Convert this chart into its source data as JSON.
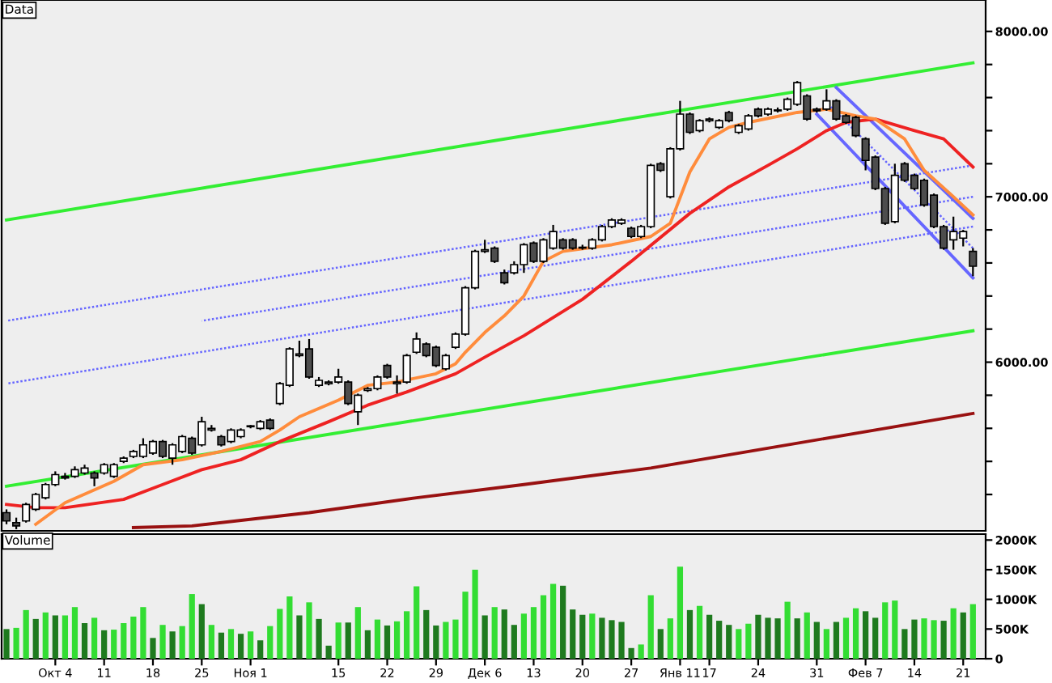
{
  "chart_data": [
    {
      "type": "candlestick",
      "title": "Data",
      "categories": [
        null,
        null,
        null,
        null,
        null,
        null,
        null,
        null,
        null,
        null,
        null,
        null,
        null,
        null,
        null,
        null,
        null,
        null,
        null,
        null,
        null,
        null,
        null,
        null,
        null,
        null,
        null,
        null,
        null,
        null,
        null,
        null,
        null,
        null,
        null,
        null,
        null,
        null,
        null,
        null,
        null,
        null,
        null,
        null,
        null,
        null,
        null,
        null,
        null,
        null,
        null,
        null,
        null,
        null,
        null,
        null,
        null,
        null,
        null,
        null,
        null,
        null,
        null,
        null,
        null,
        null,
        null,
        null,
        null,
        null,
        null,
        null,
        null,
        null,
        null,
        null,
        null,
        null,
        null,
        null,
        null,
        null,
        null,
        null,
        null,
        null,
        null,
        null,
        null,
        null,
        null,
        null,
        null,
        null,
        null,
        null,
        null,
        null,
        null,
        null
      ],
      "ohlc": [
        [
          5090,
          5110,
          5020,
          5040
        ],
        [
          5030,
          5060,
          4990,
          5010
        ],
        [
          5040,
          5150,
          5030,
          5140
        ],
        [
          5110,
          5210,
          5100,
          5200
        ],
        [
          5180,
          5270,
          5170,
          5260
        ],
        [
          5260,
          5340,
          5250,
          5320
        ],
        [
          5310,
          5330,
          5290,
          5300
        ],
        [
          5310,
          5370,
          5300,
          5350
        ],
        [
          5330,
          5380,
          5320,
          5360
        ],
        [
          5330,
          5340,
          5250,
          5300
        ],
        [
          5330,
          5390,
          5320,
          5380
        ],
        [
          5310,
          5390,
          5300,
          5380
        ],
        [
          5400,
          5430,
          5390,
          5420
        ],
        [
          5430,
          5470,
          5420,
          5460
        ],
        [
          5430,
          5540,
          5420,
          5500
        ],
        [
          5450,
          5530,
          5440,
          5520
        ],
        [
          5520,
          5530,
          5420,
          5430
        ],
        [
          5420,
          5510,
          5380,
          5500
        ],
        [
          5460,
          5560,
          5450,
          5550
        ],
        [
          5540,
          5550,
          5440,
          5450
        ],
        [
          5500,
          5670,
          5490,
          5640
        ],
        [
          5590,
          5620,
          5580,
          5600
        ],
        [
          5550,
          5560,
          5490,
          5500
        ],
        [
          5520,
          5600,
          5510,
          5590
        ],
        [
          5550,
          5600,
          5540,
          5590
        ],
        [
          5610,
          5620,
          5600,
          5615
        ],
        [
          5600,
          5650,
          5590,
          5640
        ],
        [
          5650,
          5660,
          5590,
          5600
        ],
        [
          5750,
          5880,
          5740,
          5870
        ],
        [
          5860,
          6090,
          5850,
          6080
        ],
        [
          6040,
          6130,
          6030,
          6050
        ],
        [
          6080,
          6140,
          5900,
          5910
        ],
        [
          5860,
          5910,
          5850,
          5890
        ],
        [
          5870,
          5890,
          5860,
          5880
        ],
        [
          5880,
          5960,
          5870,
          5910
        ],
        [
          5880,
          5890,
          5740,
          5750
        ],
        [
          5700,
          5810,
          5620,
          5800
        ],
        [
          5830,
          5850,
          5820,
          5840
        ],
        [
          5840,
          5920,
          5830,
          5910
        ],
        [
          5980,
          5990,
          5900,
          5910
        ],
        [
          5870,
          5920,
          5810,
          5880
        ],
        [
          5880,
          6050,
          5870,
          6040
        ],
        [
          6060,
          6180,
          6050,
          6140
        ],
        [
          6110,
          6120,
          6030,
          6040
        ],
        [
          6090,
          6100,
          5970,
          5980
        ],
        [
          5960,
          6050,
          5950,
          6040
        ],
        [
          6090,
          6180,
          6080,
          6170
        ],
        [
          6170,
          6460,
          6160,
          6450
        ],
        [
          6450,
          6680,
          6440,
          6670
        ],
        [
          6670,
          6740,
          6660,
          6680
        ],
        [
          6690,
          6700,
          6600,
          6610
        ],
        [
          6540,
          6560,
          6470,
          6480
        ],
        [
          6540,
          6610,
          6530,
          6590
        ],
        [
          6590,
          6720,
          6540,
          6710
        ],
        [
          6720,
          6730,
          6600,
          6610
        ],
        [
          6610,
          6750,
          6600,
          6740
        ],
        [
          6690,
          6830,
          6680,
          6790
        ],
        [
          6740,
          6750,
          6680,
          6690
        ],
        [
          6740,
          6750,
          6680,
          6690
        ],
        [
          6690,
          6710,
          6680,
          6695
        ],
        [
          6690,
          6750,
          6680,
          6740
        ],
        [
          6740,
          6830,
          6730,
          6820
        ],
        [
          6820,
          6870,
          6810,
          6860
        ],
        [
          6840,
          6870,
          6830,
          6860
        ],
        [
          6810,
          6820,
          6750,
          6760
        ],
        [
          6760,
          6830,
          6750,
          6820
        ],
        [
          6820,
          7200,
          6810,
          7190
        ],
        [
          7200,
          7210,
          7150,
          7160
        ],
        [
          7000,
          7300,
          6990,
          7290
        ],
        [
          7290,
          7580,
          7280,
          7500
        ],
        [
          7500,
          7510,
          7380,
          7390
        ],
        [
          7400,
          7470,
          7390,
          7460
        ],
        [
          7460,
          7480,
          7450,
          7470
        ],
        [
          7420,
          7470,
          7410,
          7460
        ],
        [
          7510,
          7520,
          7450,
          7460
        ],
        [
          7390,
          7440,
          7380,
          7430
        ],
        [
          7410,
          7500,
          7400,
          7490
        ],
        [
          7530,
          7540,
          7480,
          7490
        ],
        [
          7500,
          7540,
          7490,
          7530
        ],
        [
          7520,
          7540,
          7510,
          7525
        ],
        [
          7530,
          7600,
          7520,
          7590
        ],
        [
          7560,
          7700,
          7550,
          7690
        ],
        [
          7610,
          7620,
          7460,
          7470
        ],
        [
          7530,
          7540,
          7510,
          7520
        ],
        [
          7530,
          7650,
          7520,
          7580
        ],
        [
          7580,
          7590,
          7460,
          7470
        ],
        [
          7490,
          7500,
          7440,
          7450
        ],
        [
          7480,
          7490,
          7360,
          7370
        ],
        [
          7350,
          7360,
          7160,
          7220
        ],
        [
          7240,
          7250,
          7040,
          7050
        ],
        [
          7050,
          7060,
          6830,
          6840
        ],
        [
          6850,
          7200,
          6840,
          7130
        ],
        [
          7200,
          7210,
          7090,
          7100
        ],
        [
          7130,
          7140,
          7040,
          7050
        ],
        [
          7100,
          7110,
          6940,
          6950
        ],
        [
          7010,
          7020,
          6810,
          6820
        ],
        [
          6820,
          6830,
          6680,
          6690
        ],
        [
          6740,
          6880,
          6680,
          6790
        ],
        [
          6750,
          6800,
          6700,
          6790
        ],
        [
          6670,
          6690,
          6520,
          6580
        ]
      ],
      "colors": [
        "#4d4d4d",
        "#4d4d4d",
        "#ffffff",
        "#ffffff",
        "#ffffff",
        "#ffffff",
        "#4d4d4d",
        "#ffffff",
        "#ffffff",
        "#4d4d4d",
        "#ffffff",
        "#ffffff",
        "#ffffff",
        "#ffffff",
        "#ffffff",
        "#ffffff",
        "#4d4d4d",
        "#ffffff",
        "#ffffff",
        "#4d4d4d",
        "#ffffff",
        "#ffffff",
        "#4d4d4d",
        "#ffffff",
        "#ffffff",
        "#ffffff",
        "#ffffff",
        "#4d4d4d",
        "#ffffff",
        "#ffffff",
        "#ffffff",
        "#4d4d4d",
        "#ffffff",
        "#ffffff",
        "#ffffff",
        "#4d4d4d",
        "#ffffff",
        "#ffffff",
        "#ffffff",
        "#4d4d4d",
        "#ffffff",
        "#ffffff",
        "#ffffff",
        "#4d4d4d",
        "#4d4d4d",
        "#ffffff",
        "#ffffff",
        "#ffffff",
        "#ffffff",
        "#ffffff",
        "#4d4d4d",
        "#4d4d4d",
        "#ffffff",
        "#ffffff",
        "#4d4d4d",
        "#ffffff",
        "#ffffff",
        "#4d4d4d",
        "#4d4d4d",
        "#ffffff",
        "#ffffff",
        "#ffffff",
        "#ffffff",
        "#ffffff",
        "#4d4d4d",
        "#ffffff",
        "#ffffff",
        "#4d4d4d",
        "#ffffff",
        "#ffffff",
        "#4d4d4d",
        "#ffffff",
        "#ffffff",
        "#ffffff",
        "#4d4d4d",
        "#ffffff",
        "#ffffff",
        "#4d4d4d",
        "#ffffff",
        "#ffffff",
        "#ffffff",
        "#ffffff",
        "#4d4d4d",
        "#4d4d4d",
        "#ffffff",
        "#4d4d4d",
        "#4d4d4d",
        "#4d4d4d",
        "#4d4d4d",
        "#4d4d4d",
        "#4d4d4d",
        "#ffffff",
        "#4d4d4d",
        "#4d4d4d",
        "#4d4d4d",
        "#4d4d4d",
        "#4d4d4d",
        "#ffffff",
        "#ffffff",
        "#4d4d4d"
      ],
      "series": [
        {
          "type": "line",
          "color": "#33ee33",
          "values": [
            6860,
            null,
            null,
            null,
            null,
            null,
            null,
            null,
            null,
            null,
            null,
            null,
            null,
            null,
            null,
            null,
            null,
            null,
            null,
            null,
            null,
            null,
            null,
            null,
            null,
            null,
            null,
            null,
            null,
            null,
            null,
            null,
            null,
            null,
            null,
            null,
            null,
            null,
            null,
            null,
            null,
            null,
            null,
            null,
            null,
            null,
            null,
            null,
            null,
            null,
            null,
            null,
            null,
            null,
            null,
            null,
            null,
            null,
            null,
            null,
            null,
            null,
            null,
            null,
            null,
            null,
            null,
            null,
            null,
            null,
            null,
            null,
            null,
            null,
            null,
            null,
            null,
            null,
            null,
            null,
            null,
            null,
            null,
            null,
            null,
            null,
            null,
            null,
            null,
            null,
            null,
            null,
            null,
            null,
            null,
            null,
            null,
            null,
            null,
            7810
          ]
        },
        {
          "type": "line",
          "color": "#33ee33",
          "values": [
            5250,
            null,
            null,
            null,
            null,
            null,
            null,
            null,
            null,
            null,
            null,
            null,
            null,
            null,
            null,
            null,
            null,
            null,
            null,
            null,
            null,
            null,
            null,
            null,
            null,
            null,
            null,
            null,
            null,
            null,
            null,
            null,
            null,
            null,
            null,
            null,
            null,
            null,
            null,
            null,
            null,
            null,
            null,
            null,
            null,
            null,
            null,
            null,
            null,
            null,
            null,
            null,
            null,
            null,
            null,
            null,
            null,
            null,
            null,
            null,
            null,
            null,
            null,
            null,
            null,
            null,
            null,
            null,
            null,
            null,
            null,
            null,
            null,
            null,
            null,
            null,
            null,
            null,
            null,
            null,
            null,
            null,
            null,
            null,
            null,
            null,
            null,
            null,
            null,
            null,
            null,
            null,
            null,
            null,
            null,
            null,
            null,
            null,
            null,
            6190
          ]
        },
        {
          "type": "line",
          "color": "#6666ff",
          "line_style": "dotted",
          "values": [
            6250,
            null,
            null,
            null,
            null,
            null,
            null,
            null,
            null,
            null,
            null,
            null,
            null,
            null,
            null,
            null,
            null,
            null,
            null,
            null,
            null,
            null,
            null,
            null,
            null,
            null,
            null,
            null,
            null,
            null,
            null,
            null,
            null,
            null,
            null,
            null,
            null,
            null,
            null,
            null,
            null,
            null,
            null,
            null,
            null,
            null,
            null,
            null,
            null,
            null,
            null,
            null,
            null,
            null,
            null,
            null,
            null,
            null,
            null,
            null,
            null,
            null,
            null,
            null,
            null,
            null,
            null,
            null,
            null,
            null,
            null,
            null,
            null,
            null,
            null,
            null,
            null,
            null,
            null,
            null,
            null,
            null,
            null,
            null,
            null,
            null,
            null,
            null,
            null,
            null,
            null,
            null,
            null,
            null,
            null,
            null,
            null,
            null,
            null,
            7190
          ]
        },
        {
          "type": "line",
          "color": "#6666ff",
          "line_style": "dotted",
          "values": [
            5870,
            null,
            null,
            null,
            null,
            null,
            null,
            null,
            null,
            null,
            null,
            null,
            null,
            null,
            null,
            null,
            null,
            null,
            null,
            null,
            null,
            null,
            null,
            null,
            null,
            null,
            null,
            null,
            null,
            null,
            null,
            null,
            null,
            null,
            null,
            null,
            null,
            null,
            null,
            null,
            null,
            null,
            null,
            null,
            null,
            null,
            null,
            null,
            null,
            null,
            null,
            null,
            null,
            null,
            null,
            null,
            null,
            null,
            null,
            null,
            null,
            null,
            null,
            null,
            null,
            null,
            null,
            null,
            null,
            null,
            null,
            null,
            null,
            null,
            null,
            null,
            null,
            null,
            null,
            null,
            null,
            null,
            null,
            null,
            null,
            null,
            null,
            null,
            null,
            null,
            null,
            null,
            null,
            null,
            null,
            null,
            null,
            null,
            null,
            6820
          ]
        },
        {
          "type": "line",
          "color": "#6666ff",
          "line_style": "dotted",
          "values": [
            null,
            null,
            null,
            null,
            null,
            null,
            null,
            null,
            null,
            null,
            null,
            null,
            null,
            null,
            null,
            null,
            null,
            null,
            null,
            null,
            6250,
            null,
            null,
            null,
            null,
            null,
            null,
            null,
            null,
            null,
            null,
            null,
            null,
            null,
            null,
            null,
            null,
            null,
            null,
            null,
            null,
            null,
            null,
            null,
            null,
            null,
            null,
            null,
            null,
            null,
            null,
            null,
            null,
            null,
            null,
            null,
            null,
            null,
            null,
            null,
            null,
            null,
            null,
            null,
            null,
            null,
            null,
            null,
            null,
            null,
            null,
            null,
            null,
            null,
            null,
            null,
            null,
            null,
            null,
            null,
            null,
            null,
            null,
            null,
            null,
            null,
            null,
            null,
            null,
            null,
            null,
            null,
            null,
            null,
            null,
            null,
            null,
            null,
            null,
            7000
          ]
        },
        {
          "type": "line",
          "color": "#6666ff",
          "values": [
            null,
            null,
            null,
            null,
            null,
            null,
            null,
            null,
            null,
            null,
            null,
            null,
            null,
            null,
            null,
            null,
            null,
            null,
            null,
            null,
            null,
            null,
            null,
            null,
            null,
            null,
            null,
            null,
            null,
            null,
            null,
            null,
            null,
            null,
            null,
            null,
            null,
            null,
            null,
            null,
            null,
            null,
            null,
            null,
            null,
            null,
            null,
            null,
            null,
            null,
            null,
            null,
            null,
            null,
            null,
            null,
            null,
            null,
            null,
            null,
            null,
            null,
            null,
            null,
            null,
            null,
            null,
            null,
            null,
            null,
            null,
            null,
            null,
            null,
            null,
            null,
            null,
            null,
            null,
            null,
            null,
            null,
            null,
            null,
            null,
            7660,
            null,
            null,
            null,
            null,
            null,
            null,
            null,
            null,
            null,
            null,
            null,
            null,
            null,
            6870
          ]
        },
        {
          "type": "line",
          "color": "#6666ff",
          "values": [
            null,
            null,
            null,
            null,
            null,
            null,
            null,
            null,
            null,
            null,
            null,
            null,
            null,
            null,
            null,
            null,
            null,
            null,
            null,
            null,
            null,
            null,
            null,
            null,
            null,
            null,
            null,
            null,
            null,
            null,
            null,
            null,
            null,
            null,
            null,
            null,
            null,
            null,
            null,
            null,
            null,
            null,
            null,
            null,
            null,
            null,
            null,
            null,
            null,
            null,
            null,
            null,
            null,
            null,
            null,
            null,
            null,
            null,
            null,
            null,
            null,
            null,
            null,
            null,
            null,
            null,
            null,
            null,
            null,
            null,
            null,
            null,
            null,
            null,
            null,
            null,
            null,
            null,
            null,
            null,
            null,
            null,
            null,
            7500,
            null,
            null,
            null,
            null,
            null,
            null,
            null,
            null,
            null,
            null,
            null,
            null,
            null,
            null,
            null,
            6510
          ]
        },
        {
          "type": "line",
          "color": "#6666ff",
          "line_style": "dotted",
          "values": [
            null,
            null,
            null,
            null,
            null,
            null,
            null,
            null,
            null,
            null,
            null,
            null,
            null,
            null,
            null,
            null,
            null,
            null,
            null,
            null,
            null,
            null,
            null,
            null,
            null,
            null,
            null,
            null,
            null,
            null,
            null,
            null,
            null,
            null,
            null,
            null,
            null,
            null,
            null,
            null,
            null,
            null,
            null,
            null,
            null,
            null,
            null,
            null,
            null,
            null,
            null,
            null,
            null,
            null,
            null,
            null,
            null,
            null,
            null,
            null,
            null,
            null,
            null,
            null,
            null,
            null,
            null,
            null,
            null,
            null,
            null,
            null,
            null,
            null,
            null,
            null,
            null,
            null,
            null,
            null,
            null,
            null,
            null,
            null,
            7570,
            null,
            null,
            null,
            null,
            null,
            null,
            null,
            null,
            null,
            null,
            null,
            null,
            null,
            null,
            6690
          ]
        },
        {
          "type": "line",
          "color": "#991111",
          "values": [
            null,
            null,
            null,
            null,
            null,
            null,
            null,
            null,
            null,
            null,
            null,
            null,
            null,
            5000,
            null,
            null,
            null,
            null,
            null,
            5010,
            null,
            null,
            null,
            null,
            null,
            null,
            null,
            null,
            null,
            null,
            null,
            5090,
            null,
            null,
            null,
            null,
            null,
            null,
            null,
            null,
            null,
            null,
            5180,
            null,
            null,
            null,
            null,
            null,
            null,
            null,
            null,
            null,
            null,
            5260,
            null,
            null,
            null,
            null,
            null,
            null,
            null,
            null,
            null,
            null,
            null,
            null,
            5360,
            null,
            null,
            null,
            null,
            null,
            null,
            null,
            null,
            null,
            null,
            5470,
            null,
            null,
            null,
            null,
            null,
            null,
            null,
            null,
            null,
            null,
            null,
            5590,
            null,
            null,
            null,
            null,
            null,
            null,
            null,
            null,
            null,
            5690
          ]
        },
        {
          "type": "line",
          "color": "#ee2222",
          "values": [
            5140,
            null,
            null,
            5120,
            null,
            null,
            5120,
            null,
            null,
            null,
            null,
            null,
            5170,
            null,
            null,
            null,
            5260,
            null,
            null,
            null,
            5350,
            null,
            null,
            null,
            5410,
            null,
            null,
            null,
            5520,
            null,
            null,
            null,
            null,
            5640,
            null,
            null,
            null,
            5740,
            null,
            null,
            null,
            5820,
            null,
            null,
            null,
            null,
            5930,
            null,
            null,
            6030,
            null,
            null,
            null,
            6160,
            null,
            null,
            null,
            null,
            null,
            6380,
            null,
            null,
            null,
            null,
            6610,
            null,
            null,
            null,
            null,
            null,
            6900,
            null,
            null,
            null,
            7060,
            null,
            null,
            null,
            7190,
            null,
            null,
            7290,
            null,
            null,
            7400,
            null,
            7450,
            null,
            null,
            7470,
            null,
            null,
            null,
            7400,
            null,
            null,
            7350,
            null,
            null,
            7180
          ]
        },
        {
          "type": "line",
          "color": "#ff8c3c",
          "values": [
            null,
            null,
            null,
            5020,
            null,
            null,
            5150,
            null,
            null,
            null,
            null,
            5280,
            null,
            null,
            5380,
            null,
            null,
            null,
            5410,
            null,
            null,
            null,
            5460,
            null,
            null,
            null,
            5520,
            null,
            5590,
            null,
            5670,
            null,
            null,
            null,
            5770,
            null,
            null,
            5860,
            null,
            null,
            5880,
            null,
            null,
            null,
            5930,
            null,
            5990,
            6060,
            null,
            6180,
            null,
            6280,
            null,
            6400,
            null,
            6610,
            null,
            6670,
            null,
            null,
            null,
            null,
            6710,
            null,
            null,
            null,
            6760,
            null,
            6840,
            null,
            7150,
            null,
            7350,
            null,
            7420,
            null,
            7450,
            null,
            null,
            null,
            null,
            7510,
            null,
            null,
            7530,
            null,
            null,
            7490,
            null,
            7470,
            null,
            null,
            7350,
            null,
            7160,
            null,
            null,
            7000,
            null,
            6890
          ]
        }
      ],
      "ylim": [
        4980,
        8190
      ],
      "yticks": [
        {
          "value": 5200,
          "label": null
        },
        {
          "value": 5400,
          "label": null
        },
        {
          "value": 5600,
          "label": null
        },
        {
          "value": 5800,
          "label": null
        },
        {
          "value": 6000,
          "label": "6000.00"
        },
        {
          "value": 6200,
          "label": null
        },
        {
          "value": 6400,
          "label": null
        },
        {
          "value": 6600,
          "label": null
        },
        {
          "value": 6800,
          "label": null
        },
        {
          "value": 7000,
          "label": "7000.00"
        },
        {
          "value": 7200,
          "label": null
        },
        {
          "value": 7400,
          "label": null
        },
        {
          "value": 7600,
          "label": null
        },
        {
          "value": 7800,
          "label": null
        },
        {
          "value": 8000,
          "label": "8000.00"
        }
      ]
    },
    {
      "type": "bar",
      "title": "Volume",
      "categories": [
        null,
        null,
        null,
        null,
        null,
        "Окт 4",
        null,
        null,
        null,
        null,
        "11",
        null,
        null,
        null,
        null,
        "18",
        null,
        null,
        null,
        null,
        "25",
        null,
        null,
        null,
        null,
        "Ноя 1",
        null,
        null,
        null,
        null,
        null,
        null,
        null,
        null,
        "15",
        null,
        null,
        null,
        null,
        "22",
        null,
        null,
        null,
        null,
        "29",
        null,
        null,
        null,
        null,
        "Дек 6",
        null,
        null,
        null,
        null,
        "13",
        null,
        null,
        null,
        null,
        "20",
        null,
        null,
        null,
        null,
        "27",
        null,
        null,
        null,
        null,
        "Янв 11",
        null,
        null,
        "17",
        null,
        null,
        null,
        null,
        "24",
        null,
        null,
        null,
        null,
        null,
        "31",
        null,
        null,
        null,
        null,
        "Фев 7",
        null,
        null,
        null,
        null,
        "14",
        null,
        null,
        null,
        null,
        "21",
        null
      ],
      "values": [
        500,
        520,
        820,
        670,
        780,
        730,
        730,
        870,
        600,
        690,
        480,
        490,
        600,
        710,
        870,
        350,
        570,
        460,
        550,
        1090,
        920,
        570,
        440,
        500,
        420,
        460,
        310,
        550,
        840,
        1050,
        730,
        950,
        670,
        220,
        610,
        610,
        870,
        480,
        660,
        560,
        630,
        800,
        1220,
        820,
        560,
        620,
        660,
        1130,
        1500,
        730,
        870,
        830,
        570,
        760,
        870,
        1070,
        1260,
        1230,
        830,
        740,
        760,
        690,
        650,
        620,
        180,
        240,
        1070,
        500,
        680,
        1550,
        820,
        890,
        740,
        640,
        570,
        500,
        590,
        740,
        690,
        680,
        960,
        680,
        780,
        620,
        500,
        620,
        690,
        850,
        800,
        690,
        950,
        980,
        500,
        660,
        680,
        650,
        640,
        850,
        780,
        920
      ],
      "colors": [
        "#1e7a1e",
        "#33dd33",
        "#33dd33",
        "#1e7a1e",
        "#33dd33",
        "#1e7a1e",
        "#33dd33",
        "#33dd33",
        "#1e7a1e",
        "#33dd33",
        "#1e7a1e",
        "#33dd33",
        "#33dd33",
        "#33dd33",
        "#33dd33",
        "#1e7a1e",
        "#33dd33",
        "#1e7a1e",
        "#33dd33",
        "#33dd33",
        "#1e7a1e",
        "#33dd33",
        "#1e7a1e",
        "#33dd33",
        "#1e7a1e",
        "#33dd33",
        "#1e7a1e",
        "#33dd33",
        "#33dd33",
        "#33dd33",
        "#1e7a1e",
        "#33dd33",
        "#1e7a1e",
        "#1e7a1e",
        "#33dd33",
        "#1e7a1e",
        "#33dd33",
        "#1e7a1e",
        "#33dd33",
        "#1e7a1e",
        "#33dd33",
        "#33dd33",
        "#33dd33",
        "#1e7a1e",
        "#1e7a1e",
        "#33dd33",
        "#33dd33",
        "#33dd33",
        "#33dd33",
        "#1e7a1e",
        "#33dd33",
        "#1e7a1e",
        "#1e7a1e",
        "#33dd33",
        "#33dd33",
        "#33dd33",
        "#33dd33",
        "#1e7a1e",
        "#1e7a1e",
        "#1e7a1e",
        "#33dd33",
        "#1e7a1e",
        "#1e7a1e",
        "#1e7a1e",
        "#1e7a1e",
        "#33dd33",
        "#33dd33",
        "#1e7a1e",
        "#33dd33",
        "#33dd33",
        "#1e7a1e",
        "#33dd33",
        "#1e7a1e",
        "#1e7a1e",
        "#1e7a1e",
        "#33dd33",
        "#33dd33",
        "#1e7a1e",
        "#1e7a1e",
        "#1e7a1e",
        "#33dd33",
        "#1e7a1e",
        "#33dd33",
        "#1e7a1e",
        "#33dd33",
        "#1e7a1e",
        "#33dd33",
        "#33dd33",
        "#1e7a1e",
        "#1e7a1e",
        "#33dd33",
        "#33dd33",
        "#1e7a1e",
        "#1e7a1e",
        "#33dd33",
        "#33dd33",
        "#1e7a1e",
        "#33dd33",
        "#1e7a1e",
        "#33dd33"
      ],
      "ylim": [
        0,
        2100
      ],
      "yticks": [
        {
          "value": 0,
          "label": "0"
        },
        {
          "value": 500,
          "label": "500K"
        },
        {
          "value": 1000,
          "label": "1000K"
        },
        {
          "value": 1500,
          "label": "1500K"
        },
        {
          "value": 2000,
          "label": "2000K"
        }
      ]
    }
  ]
}
